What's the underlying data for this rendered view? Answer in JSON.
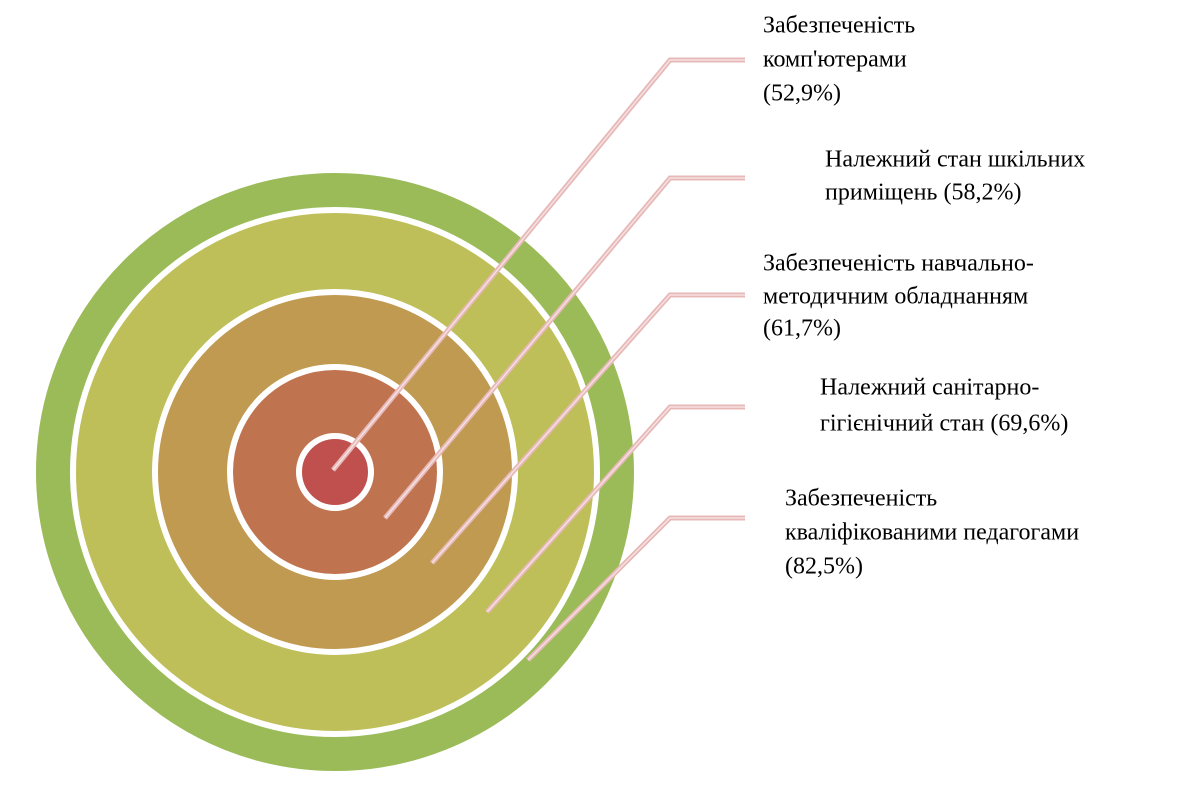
{
  "nodes": [
    {
      "lines": [
        "Забезпеченість",
        "комп'ютерами",
        "(52,9%)"
      ]
    },
    {
      "lines": [
        "Належний стан шкільних",
        "приміщень (58,2%)"
      ]
    },
    {
      "lines": [
        "Забезпеченість навчально-",
        "методичним обладнанням",
        "(61,7%)"
      ]
    },
    {
      "lines": [
        "Належний санітарно-",
        "гігієнічний стан (69,6%)"
      ]
    },
    {
      "lines": [
        "Забезпеченість",
        "кваліфікованими педагогами",
        "(82,5%)"
      ]
    }
  ]
}
